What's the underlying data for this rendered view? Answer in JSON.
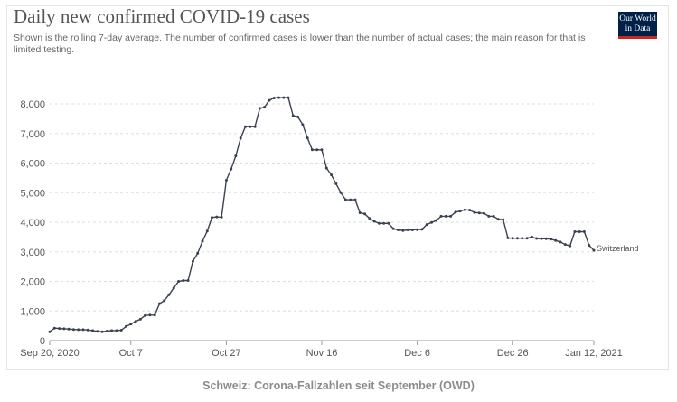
{
  "title": "Daily new confirmed COVID-19 cases",
  "subtitle": "Shown is the rolling 7-day average. The number of confirmed cases is lower than the number of actual cases; the main reason for that is limited testing.",
  "logo": {
    "line1": "Our World",
    "line2": "in Data"
  },
  "caption": "Schweiz: Corona-Fallzahlen seit September (OWD)",
  "colors": {
    "line": "#3a4252",
    "grid": "#dddddd",
    "axis": "#999999",
    "text": "#555555",
    "logo_bg": "#002147",
    "logo_stripe": "#ce261e"
  },
  "chart_data": {
    "type": "line",
    "title": "Daily new confirmed COVID-19 cases",
    "xlabel": "",
    "ylabel": "",
    "xlim": [
      "2020-09-20",
      "2021-01-12"
    ],
    "ylim": [
      0,
      8000
    ],
    "y_ticks": [
      0,
      1000,
      2000,
      3000,
      4000,
      5000,
      6000,
      7000,
      8000
    ],
    "y_tick_labels": [
      "0",
      "1,000",
      "2,000",
      "3,000",
      "4,000",
      "5,000",
      "6,000",
      "7,000",
      "8,000"
    ],
    "x_ticks": [
      {
        "date": "2020-09-20",
        "label": "Sep 20, 2020"
      },
      {
        "date": "2020-10-07",
        "label": "Oct 7"
      },
      {
        "date": "2020-10-27",
        "label": "Oct 27"
      },
      {
        "date": "2020-11-16",
        "label": "Nov 16"
      },
      {
        "date": "2020-12-06",
        "label": "Dec 6"
      },
      {
        "date": "2020-12-26",
        "label": "Dec 26"
      },
      {
        "date": "2021-01-12",
        "label": "Jan 12, 2021"
      }
    ],
    "grid": "horizontal-dashed",
    "legend": "inline-end-label",
    "series": [
      {
        "name": "Switzerland",
        "start_date": "2020-09-20",
        "step_days": 1,
        "values": [
          300,
          420,
          410,
          400,
          390,
          375,
          370,
          370,
          360,
          340,
          310,
          300,
          320,
          340,
          340,
          350,
          480,
          560,
          650,
          720,
          850,
          860,
          860,
          1250,
          1350,
          1550,
          1780,
          2000,
          2030,
          2030,
          2680,
          2950,
          3360,
          3700,
          4160,
          4180,
          4170,
          5420,
          5800,
          6240,
          6840,
          7230,
          7230,
          7230,
          7850,
          7890,
          8120,
          8200,
          8210,
          8210,
          8210,
          7600,
          7560,
          7300,
          6850,
          6450,
          6450,
          6450,
          5830,
          5600,
          5300,
          5000,
          4760,
          4760,
          4760,
          4320,
          4280,
          4130,
          4030,
          3960,
          3960,
          3960,
          3780,
          3740,
          3720,
          3740,
          3740,
          3750,
          3760,
          3920,
          3990,
          4060,
          4200,
          4200,
          4200,
          4340,
          4380,
          4420,
          4410,
          4330,
          4310,
          4300,
          4200,
          4200,
          4100,
          4090,
          3470,
          3460,
          3460,
          3460,
          3460,
          3500,
          3450,
          3440,
          3440,
          3430,
          3380,
          3330,
          3250,
          3200,
          3680,
          3680,
          3680,
          3220,
          3050
        ]
      }
    ]
  }
}
